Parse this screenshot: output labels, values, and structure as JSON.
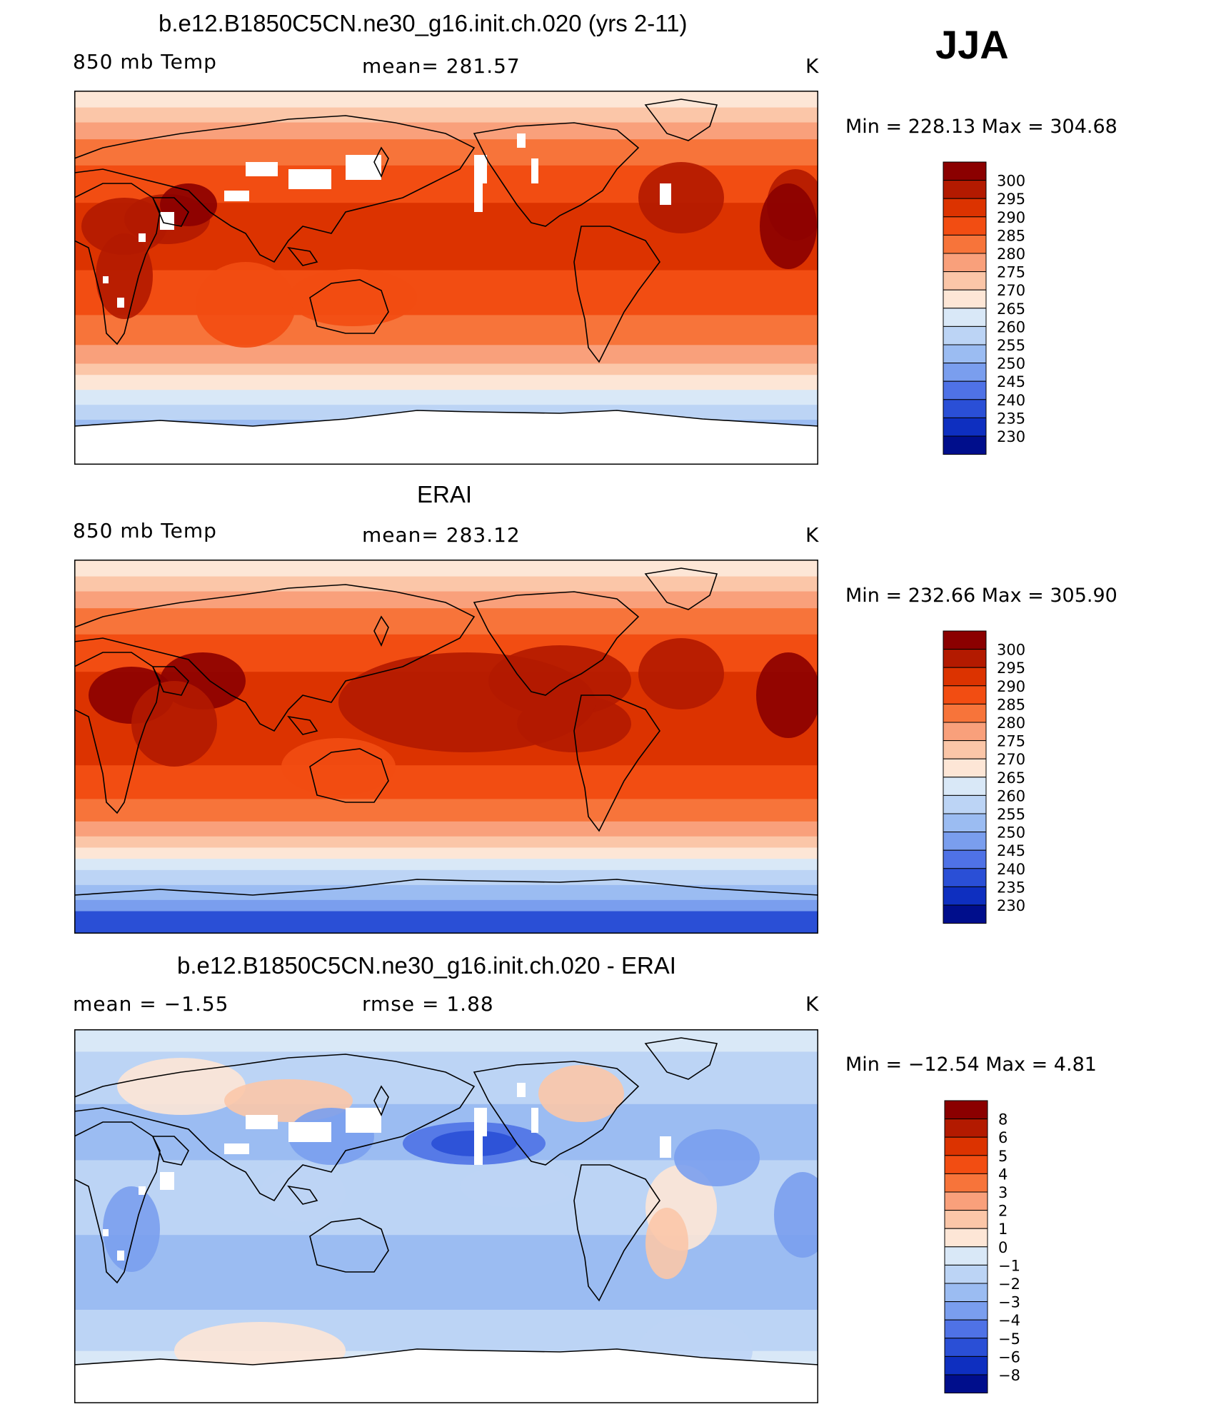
{
  "season": "JJA",
  "chart_data": [
    {
      "type": "heatmap",
      "title": "b.e12.B1850C5CN.ne30_g16.init.ch.020 (yrs 2-11)",
      "left_label": "850 mb Temp",
      "center_label": "mean=  281.57",
      "units": "K",
      "min_label": "Min  =  228.13  Max  =  304.68",
      "mean": 281.57,
      "min": 228.13,
      "max": 304.68,
      "colorbar": {
        "levels": [
          "300",
          "295",
          "290",
          "285",
          "280",
          "275",
          "270",
          "265",
          "260",
          "255",
          "250",
          "245",
          "240",
          "235",
          "230"
        ],
        "colors": [
          "#8b0000",
          "#b31a00",
          "#dc3300",
          "#f24d12",
          "#f7743a",
          "#f9a07b",
          "#fbc6a8",
          "#fde6d6",
          "#d9e8f7",
          "#bcd4f5",
          "#9bbcf2",
          "#7a9eee",
          "#4f72e6",
          "#2a4fd6",
          "#0e2fc0",
          "#000e8c"
        ]
      }
    },
    {
      "type": "heatmap",
      "title": "ERAI",
      "left_label": "850 mb Temp",
      "center_label": "mean=  283.12",
      "units": "K",
      "min_label": "Min  =  232.66  Max  =  305.90",
      "mean": 283.12,
      "min": 232.66,
      "max": 305.9,
      "colorbar": {
        "levels": [
          "300",
          "295",
          "290",
          "285",
          "280",
          "275",
          "270",
          "265",
          "260",
          "255",
          "250",
          "245",
          "240",
          "235",
          "230"
        ],
        "colors": [
          "#8b0000",
          "#b31a00",
          "#dc3300",
          "#f24d12",
          "#f7743a",
          "#f9a07b",
          "#fbc6a8",
          "#fde6d6",
          "#d9e8f7",
          "#bcd4f5",
          "#9bbcf2",
          "#7a9eee",
          "#4f72e6",
          "#2a4fd6",
          "#0e2fc0",
          "#000e8c"
        ]
      }
    },
    {
      "type": "heatmap",
      "title": "b.e12.B1850C5CN.ne30_g16.init.ch.020 - ERAI",
      "left_label": "mean  =    −1.55",
      "center_label": "rmse  =     1.88",
      "units": "K",
      "min_label": "Min  =  −12.54  Max  =     4.81",
      "mean": -1.55,
      "rmse": 1.88,
      "min": -12.54,
      "max": 4.81,
      "colorbar": {
        "levels": [
          "8",
          "6",
          "5",
          "4",
          "3",
          "2",
          "1",
          "0",
          "−1",
          "−2",
          "−3",
          "−4",
          "−5",
          "−6",
          "−8"
        ],
        "colors": [
          "#8b0000",
          "#b31a00",
          "#dc3300",
          "#f24d12",
          "#f7743a",
          "#f9a07b",
          "#fbc6a8",
          "#fde6d6",
          "#d9e8f7",
          "#bcd4f5",
          "#9bbcf2",
          "#7a9eee",
          "#4f72e6",
          "#2a4fd6",
          "#0e2fc0",
          "#000e8c"
        ]
      }
    }
  ]
}
